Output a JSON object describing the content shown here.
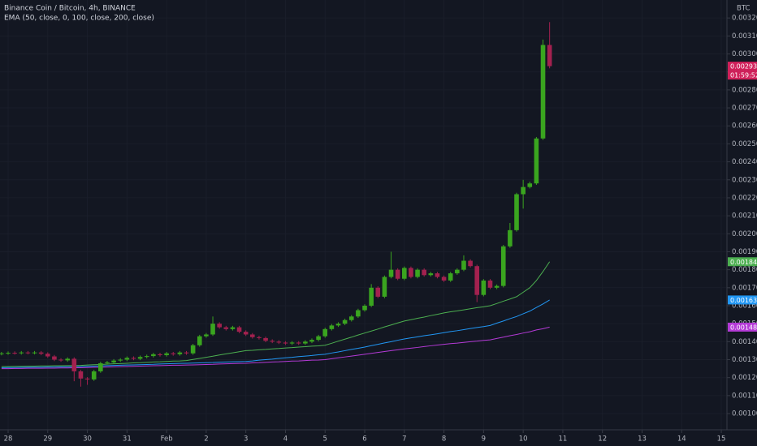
{
  "chart_data": {
    "type": "candlestick",
    "title": "Binance Coin / Bitcoin, 4h, BINANCE",
    "indicator": "EMA (50, close, 0, 100, close, 200, close)",
    "currency": "BTC",
    "categories": [
      null,
      "28",
      null,
      null,
      null,
      null,
      null,
      "29",
      null,
      null,
      null,
      null,
      null,
      "30",
      null,
      null,
      null,
      null,
      null,
      "31",
      null,
      null,
      null,
      null,
      null,
      "Feb",
      null,
      null,
      null,
      null,
      null,
      "2",
      null,
      null,
      null,
      null,
      null,
      "3",
      null,
      null,
      null,
      null,
      null,
      "4",
      null,
      null,
      null,
      null,
      null,
      "5",
      null,
      null,
      null,
      null,
      null,
      "6",
      null,
      null,
      null,
      null,
      null,
      "7",
      null,
      null,
      null,
      null,
      null,
      "8",
      null,
      null,
      null,
      null,
      null,
      "9",
      null,
      null,
      null,
      null,
      null,
      "10",
      null,
      null,
      null,
      null,
      null,
      "11",
      null,
      null,
      null,
      null,
      null,
      "12",
      null,
      null,
      null,
      null,
      null,
      "13",
      null,
      null,
      null,
      null,
      null,
      "14",
      null,
      null,
      null,
      null,
      null,
      "15"
    ],
    "open": [
      0.001332,
      0.001335,
      0.001338,
      0.001336,
      0.00134,
      0.001337,
      0.00134,
      0.001333,
      0.001318,
      0.0013,
      0.001296,
      0.001305,
      0.001235,
      0.001195,
      0.00119,
      0.001235,
      0.00128,
      0.001285,
      0.001295,
      0.0013,
      0.00131,
      0.001305,
      0.001315,
      0.00132,
      0.00133,
      0.001325,
      0.001335,
      0.00133,
      0.00134,
      0.001335,
      0.00138,
      0.00143,
      0.00144,
      0.0015,
      0.00148,
      0.00147,
      0.00148,
      0.001455,
      0.00144,
      0.001425,
      0.00142,
      0.001405,
      0.0014,
      0.001395,
      0.00139,
      0.001395,
      0.00139,
      0.0014,
      0.00141,
      0.00143,
      0.00147,
      0.00149,
      0.0015,
      0.00152,
      0.00154,
      0.001575,
      0.0016,
      0.0017,
      0.00165,
      0.00176,
      0.0018,
      0.00175,
      0.00181,
      0.00176,
      0.0018,
      0.00177,
      0.00178,
      0.00176,
      0.00174,
      0.00178,
      0.0018,
      0.00185,
      0.00182,
      0.00166,
      0.00174,
      0.0017,
      0.00171,
      0.00193,
      0.00202,
      0.00222,
      0.00226,
      0.00228,
      0.00253,
      0.00305,
      null,
      null,
      null,
      null,
      null,
      null,
      null,
      null,
      null,
      null,
      null,
      null,
      null,
      null,
      null,
      null,
      null,
      null,
      null,
      null,
      null,
      null,
      null,
      null,
      null,
      null
    ],
    "high": [
      0.001343,
      0.001346,
      0.001346,
      0.001348,
      0.001348,
      0.001348,
      0.001348,
      0.001341,
      0.001326,
      0.001308,
      0.001313,
      0.001313,
      0.001243,
      0.001203,
      0.001243,
      0.001288,
      0.001293,
      0.001303,
      0.001308,
      0.001318,
      0.001318,
      0.001323,
      0.001328,
      0.001338,
      0.001338,
      0.001343,
      0.001343,
      0.001348,
      0.001348,
      0.001388,
      0.001438,
      0.001448,
      0.00154,
      0.001508,
      0.001488,
      0.001488,
      0.001488,
      0.001463,
      0.001448,
      0.001433,
      0.001428,
      0.001413,
      0.001408,
      0.001403,
      0.001403,
      0.001403,
      0.001408,
      0.001418,
      0.001438,
      0.001478,
      0.001498,
      0.001508,
      0.001528,
      0.001548,
      0.001583,
      0.001608,
      0.00172,
      0.001708,
      0.001768,
      0.0019,
      0.001808,
      0.001818,
      0.001818,
      0.001808,
      0.001808,
      0.001788,
      0.001788,
      0.001768,
      0.001788,
      0.001808,
      0.00188,
      0.001858,
      0.001828,
      0.001748,
      0.001748,
      0.001718,
      0.001938,
      0.00206,
      0.002228,
      0.0023,
      0.00229,
      0.002538,
      0.00308,
      0.003177,
      null,
      null,
      null,
      null,
      null,
      null,
      null,
      null,
      null,
      null,
      null,
      null,
      null,
      null,
      null,
      null,
      null,
      null,
      null,
      null,
      null,
      null,
      null,
      null,
      null,
      null
    ],
    "low": [
      0.001324,
      0.001327,
      0.001328,
      0.001328,
      0.001329,
      0.001329,
      0.001325,
      0.00131,
      0.001292,
      0.001288,
      0.001288,
      0.00118,
      0.00115,
      0.00116,
      0.001182,
      0.001227,
      0.001272,
      0.001277,
      0.001287,
      0.001292,
      0.001297,
      0.001297,
      0.001307,
      0.001312,
      0.001317,
      0.001317,
      0.001322,
      0.001322,
      0.001327,
      0.001327,
      0.001372,
      0.001422,
      0.001432,
      0.001472,
      0.001462,
      0.001462,
      0.001447,
      0.001432,
      0.001417,
      0.001412,
      0.001397,
      0.001392,
      0.001387,
      0.001382,
      0.001382,
      0.001382,
      0.001382,
      0.001392,
      0.001402,
      0.001422,
      0.001462,
      0.001482,
      0.001492,
      0.001512,
      0.001532,
      0.001567,
      0.001592,
      0.001642,
      0.001642,
      0.001752,
      0.001742,
      0.001742,
      0.001752,
      0.001752,
      0.001762,
      0.001762,
      0.001752,
      0.001732,
      0.001732,
      0.001772,
      0.001792,
      0.001812,
      0.00162,
      0.001652,
      0.001692,
      0.001692,
      0.001702,
      0.001922,
      0.002012,
      0.00214,
      0.002252,
      0.002272,
      0.002522,
      0.00292,
      null,
      null,
      null,
      null,
      null,
      null,
      null,
      null,
      null,
      null,
      null,
      null,
      null,
      null,
      null,
      null,
      null,
      null,
      null,
      null,
      null,
      null,
      null,
      null,
      null,
      null
    ],
    "close": [
      0.001335,
      0.001338,
      0.001336,
      0.00134,
      0.001337,
      0.00134,
      0.001333,
      0.001318,
      0.0013,
      0.001296,
      0.001305,
      0.001235,
      0.001195,
      0.00119,
      0.001235,
      0.00128,
      0.001285,
      0.001295,
      0.0013,
      0.00131,
      0.001305,
      0.001315,
      0.00132,
      0.00133,
      0.001325,
      0.001335,
      0.00133,
      0.00134,
      0.001335,
      0.00138,
      0.00143,
      0.00144,
      0.0015,
      0.00148,
      0.00147,
      0.00148,
      0.001455,
      0.00144,
      0.001425,
      0.00142,
      0.001405,
      0.0014,
      0.001395,
      0.00139,
      0.001395,
      0.00139,
      0.0014,
      0.00141,
      0.00143,
      0.00147,
      0.00149,
      0.0015,
      0.00152,
      0.00154,
      0.001575,
      0.0016,
      0.0017,
      0.00165,
      0.00176,
      0.0018,
      0.00175,
      0.00181,
      0.00176,
      0.0018,
      0.00177,
      0.00178,
      0.00176,
      0.00174,
      0.00178,
      0.0018,
      0.00185,
      0.00182,
      0.00166,
      0.00174,
      0.0017,
      0.00171,
      0.00193,
      0.00202,
      0.00222,
      0.00226,
      0.00228,
      0.00253,
      0.00305,
      0.0029321,
      null,
      null,
      null,
      null,
      null,
      null,
      null,
      null,
      null,
      null,
      null,
      null,
      null,
      null,
      null,
      null,
      null,
      null,
      null,
      null,
      null,
      null,
      null,
      null,
      null,
      null
    ],
    "up_color": "#3aa51f",
    "down_color": "#a3214f",
    "last_price_label": "0.0029321",
    "last_price_color": "#d0205a",
    "countdown": "01:59:52",
    "series": [
      {
        "color": "#4caf50",
        "last_label": "0.0018445",
        "values": [
          0.001262,
          0.001262,
          0.001263,
          0.001263,
          0.001264,
          0.001264,
          0.001265,
          0.001265,
          0.001266,
          0.001266,
          0.001267,
          0.001267,
          0.001268,
          0.00127,
          0.001272,
          0.001273,
          0.001275,
          0.001277,
          0.001278,
          0.00128,
          0.001282,
          0.001283,
          0.001285,
          0.001287,
          0.001288,
          0.00129,
          0.001292,
          0.001293,
          0.001295,
          0.001301,
          0.001307,
          0.001313,
          0.001319,
          0.001326,
          0.001332,
          0.001338,
          0.001344,
          0.00135,
          0.001352,
          0.001355,
          0.001357,
          0.00136,
          0.001362,
          0.001365,
          0.001367,
          0.00137,
          0.001372,
          0.001375,
          0.001377,
          0.00138,
          0.001391,
          0.001403,
          0.001414,
          0.001425,
          0.001437,
          0.001448,
          0.001459,
          0.00147,
          0.001482,
          0.001493,
          0.001504,
          0.001515,
          0.001522,
          0.00153,
          0.001537,
          0.001545,
          0.001552,
          0.00156,
          0.001566,
          0.001571,
          0.001577,
          0.001583,
          0.001589,
          0.001594,
          0.0016,
          0.001612,
          0.001625,
          0.001637,
          0.00165,
          0.001675,
          0.0017,
          0.00174,
          0.00179,
          0.0018445,
          null,
          null,
          null,
          null,
          null,
          null,
          null,
          null,
          null,
          null,
          null,
          null,
          null,
          null,
          null,
          null,
          null,
          null,
          null,
          null,
          null,
          null,
          null,
          null,
          null,
          null
        ]
      },
      {
        "color": "#2196f3",
        "last_label": "0.0016319",
        "values": [
          0.001255,
          0.001256,
          0.001256,
          0.001257,
          0.001257,
          0.001258,
          0.001258,
          0.001259,
          0.001259,
          0.00126,
          0.00126,
          0.001261,
          0.001262,
          0.001263,
          0.001264,
          0.001265,
          0.001267,
          0.001268,
          0.001269,
          0.00127,
          0.001271,
          0.001272,
          0.001273,
          0.001274,
          0.001276,
          0.001277,
          0.001278,
          0.001279,
          0.00128,
          0.001281,
          0.001282,
          0.001283,
          0.001284,
          0.001286,
          0.001287,
          0.001288,
          0.001289,
          0.00129,
          0.001293,
          0.001297,
          0.0013,
          0.001303,
          0.001307,
          0.00131,
          0.001313,
          0.001317,
          0.00132,
          0.001323,
          0.001327,
          0.00133,
          0.001337,
          0.001343,
          0.00135,
          0.001357,
          0.001363,
          0.00137,
          0.001378,
          0.001385,
          0.001393,
          0.0014,
          0.001408,
          0.001415,
          0.001421,
          0.001427,
          0.001433,
          0.001438,
          0.001444,
          0.00145,
          0.001456,
          0.001461,
          0.001467,
          0.001473,
          0.001479,
          0.001484,
          0.00149,
          0.001503,
          0.001515,
          0.001528,
          0.00154,
          0.001555,
          0.00157,
          0.00159,
          0.00161,
          0.0016319,
          null,
          null,
          null,
          null,
          null,
          null,
          null,
          null,
          null,
          null,
          null,
          null,
          null,
          null,
          null,
          null,
          null,
          null,
          null,
          null,
          null,
          null,
          null,
          null,
          null,
          null
        ]
      },
      {
        "color": "#b43ad6",
        "last_label": "0.0014808",
        "values": [
          0.00125,
          0.00125,
          0.001251,
          0.001251,
          0.001252,
          0.001252,
          0.001252,
          0.001253,
          0.001253,
          0.001254,
          0.001254,
          0.001255,
          0.001255,
          0.001256,
          0.001257,
          0.001258,
          0.001259,
          0.00126,
          0.001261,
          0.001262,
          0.001263,
          0.001264,
          0.001265,
          0.001266,
          0.001267,
          0.001268,
          0.001269,
          0.001269,
          0.00127,
          0.001271,
          0.001272,
          0.001273,
          0.001274,
          0.001276,
          0.001277,
          0.001278,
          0.001279,
          0.00128,
          0.001282,
          0.001283,
          0.001285,
          0.001287,
          0.001288,
          0.00129,
          0.001292,
          0.001293,
          0.001295,
          0.001297,
          0.001298,
          0.0013,
          0.001305,
          0.00131,
          0.001315,
          0.00132,
          0.001325,
          0.00133,
          0.001335,
          0.00134,
          0.001345,
          0.00135,
          0.001355,
          0.00136,
          0.001364,
          0.001368,
          0.001373,
          0.001377,
          0.001381,
          0.001385,
          0.001389,
          0.001392,
          0.001396,
          0.0014,
          0.001403,
          0.001407,
          0.00141,
          0.001418,
          0.001425,
          0.001433,
          0.00144,
          0.001448,
          0.001455,
          0.001465,
          0.001472,
          0.0014808,
          null,
          null,
          null,
          null,
          null,
          null,
          null,
          null,
          null,
          null,
          null,
          null,
          null,
          null,
          null,
          null,
          null,
          null,
          null,
          null,
          null,
          null,
          null,
          null,
          null,
          null
        ]
      }
    ],
    "ylim": [
      0.00091,
      0.0033
    ],
    "yticks": [
      {
        "value": 0.001,
        "label": "0.0010000"
      },
      {
        "value": 0.0011,
        "label": "0.0011000"
      },
      {
        "value": 0.0012,
        "label": "0.0012000"
      },
      {
        "value": 0.0013,
        "label": "0.0013000"
      },
      {
        "value": 0.0014,
        "label": "0.0014000"
      },
      {
        "value": 0.0015,
        "label": "0.0015000"
      },
      {
        "value": 0.0016,
        "label": "0.0016000"
      },
      {
        "value": 0.0017,
        "label": "0.0017000"
      },
      {
        "value": 0.0018,
        "label": "0.0018000"
      },
      {
        "value": 0.0019,
        "label": "0.0019000"
      },
      {
        "value": 0.002,
        "label": "0.0020000"
      },
      {
        "value": 0.0021,
        "label": "0.0021000"
      },
      {
        "value": 0.0022,
        "label": "0.0022000"
      },
      {
        "value": 0.0023,
        "label": "0.0023000"
      },
      {
        "value": 0.0024,
        "label": "0.0024000"
      },
      {
        "value": 0.0025,
        "label": "0.0025000"
      },
      {
        "value": 0.0026,
        "label": "0.0026000"
      },
      {
        "value": 0.0027,
        "label": "0.0027000"
      },
      {
        "value": 0.0028,
        "label": "0.0028000"
      },
      {
        "value": 0.0029,
        "label": "0.0029000"
      },
      {
        "value": 0.003,
        "label": "0.0030000"
      },
      {
        "value": 0.0031,
        "label": "0.0031000"
      },
      {
        "value": 0.0032,
        "label": "0.0032000"
      }
    ],
    "grid": true
  }
}
